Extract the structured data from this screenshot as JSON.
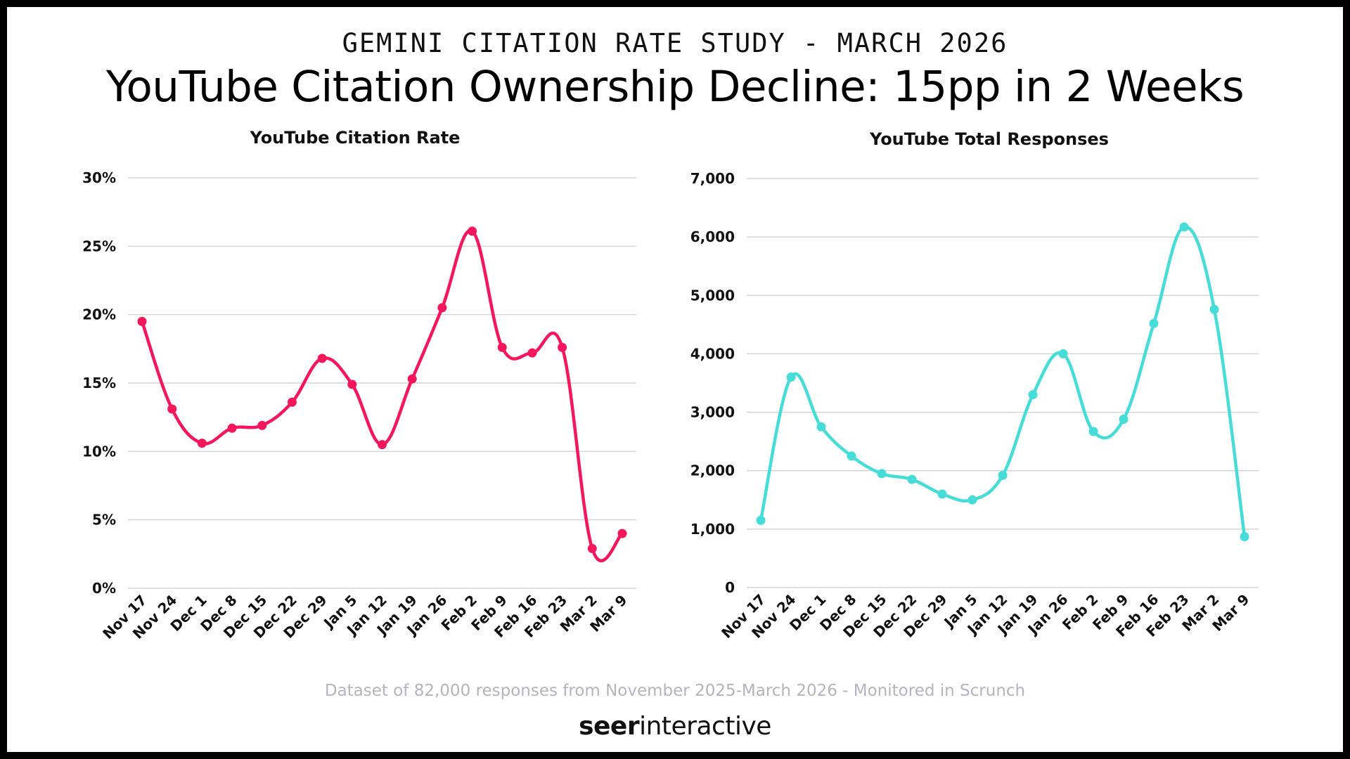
{
  "header": {
    "kicker": "GEMINI CITATION RATE STUDY - MARCH 2026",
    "title": "YouTube Citation Ownership Decline: 15pp in 2 Weeks"
  },
  "footer": {
    "note": "Dataset of 82,000 responses from November 2025-March 2026 - Monitored in Scrunch",
    "logo_bold": "seer",
    "logo_rest": "interactive"
  },
  "chart_data": [
    {
      "type": "line",
      "title": "YouTube Citation Rate",
      "color": "#f5165b",
      "categories": [
        "Nov 17",
        "Nov 24",
        "Dec 1",
        "Dec 8",
        "Dec 15",
        "Dec 22",
        "Dec 29",
        "Jan 5",
        "Jan 12",
        "Jan 19",
        "Jan 26",
        "Feb 2",
        "Feb 9",
        "Feb 16",
        "Feb 23",
        "Mar 2",
        "Mar 9"
      ],
      "values": [
        19.5,
        13.1,
        10.6,
        11.7,
        11.9,
        13.6,
        16.8,
        14.9,
        10.5,
        15.3,
        20.5,
        26.1,
        17.6,
        17.2,
        17.6,
        2.9,
        4.0
      ],
      "ylim": [
        0,
        30
      ],
      "yticks": [
        0,
        5,
        10,
        15,
        20,
        25,
        30
      ],
      "ytick_labels": [
        "0%",
        "5%",
        "10%",
        "15%",
        "20%",
        "25%",
        "30%"
      ],
      "grid": true
    },
    {
      "type": "line",
      "title": "YouTube Total Responses",
      "color": "#46dcd8",
      "categories": [
        "Nov 17",
        "Nov 24",
        "Dec 1",
        "Dec 8",
        "Dec 15",
        "Dec 22",
        "Dec 29",
        "Jan 5",
        "Jan 12",
        "Jan 19",
        "Jan 26",
        "Feb 2",
        "Feb 9",
        "Feb 16",
        "Feb 23",
        "Mar 2",
        "Mar 9"
      ],
      "values": [
        1150,
        3600,
        2750,
        2250,
        1950,
        1850,
        1600,
        1500,
        1920,
        3300,
        4000,
        2670,
        2880,
        4520,
        6170,
        4760,
        870
      ],
      "ylim": [
        0,
        7000
      ],
      "yticks": [
        0,
        1000,
        2000,
        3000,
        4000,
        5000,
        6000,
        7000
      ],
      "ytick_labels": [
        "0",
        "1,000",
        "2,000",
        "3,000",
        "4,000",
        "5,000",
        "6,000",
        "7,000"
      ],
      "grid": true
    }
  ]
}
